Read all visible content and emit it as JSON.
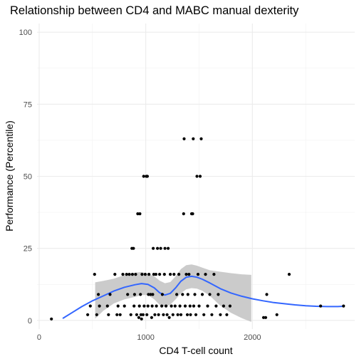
{
  "chart_data": {
    "type": "scatter",
    "title": "Relationship between CD4 and MABC manual dexterity",
    "xlabel": "CD4 T-cell count",
    "ylabel": "Performance (Percentile)",
    "xlim": [
      -20,
      2960
    ],
    "ylim": [
      -3,
      103
    ],
    "x_ticks": [
      0,
      1000,
      2000
    ],
    "x_tick_labels": [
      "0",
      "1000",
      "2000"
    ],
    "x_minor_ticks": [
      500,
      1500,
      2500
    ],
    "y_ticks": [
      0,
      25,
      50,
      75,
      100
    ],
    "y_tick_labels": [
      "0",
      "25",
      "50",
      "75",
      "100"
    ],
    "y_minor_ticks": [
      12.5,
      37.5,
      62.5,
      87.5
    ],
    "grid": true,
    "point_color": "#000000",
    "smooth_color": "#3366ff",
    "band_color": "#c8c8c8",
    "points": [
      {
        "x": 115,
        "y": 0.5
      },
      {
        "x": 455,
        "y": 2
      },
      {
        "x": 480,
        "y": 5
      },
      {
        "x": 520,
        "y": 16
      },
      {
        "x": 540,
        "y": 2
      },
      {
        "x": 555,
        "y": 9
      },
      {
        "x": 565,
        "y": 5
      },
      {
        "x": 640,
        "y": 5
      },
      {
        "x": 650,
        "y": 2
      },
      {
        "x": 665,
        "y": 9
      },
      {
        "x": 710,
        "y": 16
      },
      {
        "x": 730,
        "y": 2
      },
      {
        "x": 740,
        "y": 5
      },
      {
        "x": 760,
        "y": 2
      },
      {
        "x": 785,
        "y": 16
      },
      {
        "x": 800,
        "y": 5
      },
      {
        "x": 820,
        "y": 16
      },
      {
        "x": 830,
        "y": 9
      },
      {
        "x": 845,
        "y": 16
      },
      {
        "x": 860,
        "y": 2
      },
      {
        "x": 870,
        "y": 25
      },
      {
        "x": 875,
        "y": 16
      },
      {
        "x": 885,
        "y": 25
      },
      {
        "x": 890,
        "y": 5
      },
      {
        "x": 895,
        "y": 9
      },
      {
        "x": 905,
        "y": 16
      },
      {
        "x": 915,
        "y": 2
      },
      {
        "x": 925,
        "y": 37
      },
      {
        "x": 935,
        "y": 1
      },
      {
        "x": 940,
        "y": 5
      },
      {
        "x": 945,
        "y": 37
      },
      {
        "x": 950,
        "y": 9
      },
      {
        "x": 955,
        "y": 2
      },
      {
        "x": 960,
        "y": 0.5
      },
      {
        "x": 965,
        "y": 16
      },
      {
        "x": 975,
        "y": 2
      },
      {
        "x": 980,
        "y": 50
      },
      {
        "x": 985,
        "y": 5
      },
      {
        "x": 995,
        "y": 16
      },
      {
        "x": 1005,
        "y": 50
      },
      {
        "x": 1010,
        "y": 2
      },
      {
        "x": 1015,
        "y": 50
      },
      {
        "x": 1020,
        "y": 5
      },
      {
        "x": 1025,
        "y": 9
      },
      {
        "x": 1030,
        "y": 16
      },
      {
        "x": 1045,
        "y": 9
      },
      {
        "x": 1055,
        "y": 1
      },
      {
        "x": 1060,
        "y": 5
      },
      {
        "x": 1065,
        "y": 9
      },
      {
        "x": 1070,
        "y": 25
      },
      {
        "x": 1075,
        "y": 16
      },
      {
        "x": 1085,
        "y": 2
      },
      {
        "x": 1095,
        "y": 16
      },
      {
        "x": 1100,
        "y": 5
      },
      {
        "x": 1110,
        "y": 25
      },
      {
        "x": 1120,
        "y": 2
      },
      {
        "x": 1130,
        "y": 16
      },
      {
        "x": 1140,
        "y": 25
      },
      {
        "x": 1150,
        "y": 5
      },
      {
        "x": 1155,
        "y": 9
      },
      {
        "x": 1165,
        "y": 2
      },
      {
        "x": 1175,
        "y": 16
      },
      {
        "x": 1180,
        "y": 25
      },
      {
        "x": 1190,
        "y": 5
      },
      {
        "x": 1200,
        "y": 2
      },
      {
        "x": 1210,
        "y": 25
      },
      {
        "x": 1220,
        "y": 1
      },
      {
        "x": 1230,
        "y": 16
      },
      {
        "x": 1240,
        "y": 5
      },
      {
        "x": 1255,
        "y": 2
      },
      {
        "x": 1265,
        "y": 16
      },
      {
        "x": 1275,
        "y": 5
      },
      {
        "x": 1290,
        "y": 9
      },
      {
        "x": 1300,
        "y": 2
      },
      {
        "x": 1310,
        "y": 16
      },
      {
        "x": 1320,
        "y": 5
      },
      {
        "x": 1330,
        "y": 2
      },
      {
        "x": 1345,
        "y": 9
      },
      {
        "x": 1355,
        "y": 37
      },
      {
        "x": 1360,
        "y": 63
      },
      {
        "x": 1370,
        "y": 5
      },
      {
        "x": 1380,
        "y": 16
      },
      {
        "x": 1390,
        "y": 2
      },
      {
        "x": 1395,
        "y": 9
      },
      {
        "x": 1405,
        "y": 16
      },
      {
        "x": 1415,
        "y": 5
      },
      {
        "x": 1420,
        "y": 2
      },
      {
        "x": 1430,
        "y": 37
      },
      {
        "x": 1440,
        "y": 37
      },
      {
        "x": 1445,
        "y": 63
      },
      {
        "x": 1450,
        "y": 5
      },
      {
        "x": 1460,
        "y": 9
      },
      {
        "x": 1470,
        "y": 2
      },
      {
        "x": 1480,
        "y": 50
      },
      {
        "x": 1490,
        "y": 16
      },
      {
        "x": 1500,
        "y": 5
      },
      {
        "x": 1510,
        "y": 50
      },
      {
        "x": 1520,
        "y": 63
      },
      {
        "x": 1530,
        "y": 9
      },
      {
        "x": 1545,
        "y": 2
      },
      {
        "x": 1560,
        "y": 16
      },
      {
        "x": 1580,
        "y": 5
      },
      {
        "x": 1600,
        "y": 9
      },
      {
        "x": 1620,
        "y": 2
      },
      {
        "x": 1640,
        "y": 16
      },
      {
        "x": 1660,
        "y": 5
      },
      {
        "x": 1680,
        "y": 9
      },
      {
        "x": 1700,
        "y": 2
      },
      {
        "x": 1730,
        "y": 5
      },
      {
        "x": 1760,
        "y": 2
      },
      {
        "x": 1790,
        "y": 5
      },
      {
        "x": 2105,
        "y": 1
      },
      {
        "x": 2125,
        "y": 1
      },
      {
        "x": 2135,
        "y": 9
      },
      {
        "x": 2230,
        "y": 2
      },
      {
        "x": 2345,
        "y": 16
      },
      {
        "x": 2640,
        "y": 5
      },
      {
        "x": 2855,
        "y": 5
      }
    ],
    "smooth_line": [
      [
        225,
        0.8
      ],
      [
        300,
        2.5
      ],
      [
        400,
        4.8
      ],
      [
        500,
        6.8
      ],
      [
        600,
        8.5
      ],
      [
        700,
        10.2
      ],
      [
        800,
        11.5
      ],
      [
        900,
        12.4
      ],
      [
        960,
        12.8
      ],
      [
        1020,
        12.5
      ],
      [
        1080,
        11.3
      ],
      [
        1130,
        9.6
      ],
      [
        1180,
        8.8
      ],
      [
        1230,
        9.4
      ],
      [
        1280,
        11.3
      ],
      [
        1330,
        13.6
      ],
      [
        1380,
        15.0
      ],
      [
        1430,
        15.3
      ],
      [
        1480,
        15.0
      ],
      [
        1530,
        14.3
      ],
      [
        1600,
        13.0
      ],
      [
        1700,
        11.0
      ],
      [
        1800,
        9.5
      ],
      [
        1900,
        8.4
      ],
      [
        2000,
        7.5
      ],
      [
        2100,
        6.8
      ],
      [
        2200,
        6.2
      ],
      [
        2300,
        5.8
      ],
      [
        2400,
        5.4
      ],
      [
        2500,
        5.1
      ],
      [
        2600,
        4.9
      ],
      [
        2700,
        4.8
      ],
      [
        2800,
        4.8
      ],
      [
        2855,
        4.9
      ]
    ],
    "band_upper": [
      [
        525,
        13.2
      ],
      [
        600,
        13.7
      ],
      [
        700,
        14.5
      ],
      [
        800,
        15.7
      ],
      [
        900,
        16.6
      ],
      [
        960,
        16.8
      ],
      [
        1020,
        16.2
      ],
      [
        1080,
        15.3
      ],
      [
        1130,
        13.8
      ],
      [
        1180,
        12.9
      ],
      [
        1230,
        13.3
      ],
      [
        1280,
        15.3
      ],
      [
        1330,
        17.8
      ],
      [
        1380,
        19.2
      ],
      [
        1430,
        19.4
      ],
      [
        1480,
        19.0
      ],
      [
        1530,
        18.3
      ],
      [
        1600,
        17.4
      ],
      [
        1700,
        16.9
      ],
      [
        1800,
        16.4
      ],
      [
        1900,
        16.0
      ],
      [
        1990,
        15.8
      ]
    ],
    "band_lower": [
      [
        525,
        0.6
      ],
      [
        600,
        3.3
      ],
      [
        700,
        5.9
      ],
      [
        800,
        7.3
      ],
      [
        900,
        8.2
      ],
      [
        960,
        8.8
      ],
      [
        1020,
        8.8
      ],
      [
        1080,
        7.3
      ],
      [
        1130,
        5.4
      ],
      [
        1180,
        4.7
      ],
      [
        1230,
        5.5
      ],
      [
        1280,
        7.3
      ],
      [
        1330,
        9.4
      ],
      [
        1380,
        10.8
      ],
      [
        1430,
        11.2
      ],
      [
        1480,
        11.0
      ],
      [
        1530,
        10.3
      ],
      [
        1600,
        8.6
      ],
      [
        1700,
        5.1
      ],
      [
        1800,
        2.6
      ],
      [
        1900,
        0.8
      ],
      [
        1990,
        -0.5
      ]
    ]
  }
}
